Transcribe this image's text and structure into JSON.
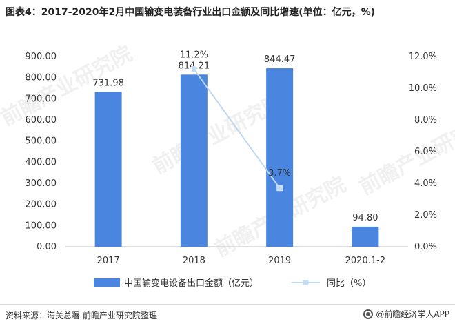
{
  "title": "图表4：2017-2020年2月中国输变电装备行业出口金额及同比增速(单位：亿元，%)",
  "source": "资料来源：海关总署 前瞻产业研究院整理",
  "brand": "@前瞻经济学人APP",
  "brand_icon": "qianzhan-logo-icon",
  "watermark": "前瞻产业研究院",
  "colors": {
    "bar": "#4a86e0",
    "line": "#bdd7ee",
    "marker": "#c6dcf2",
    "axis": "#bfbfbf",
    "text": "#333333"
  },
  "chart_data": {
    "type": "bar",
    "categories": [
      "2017",
      "2018",
      "2019",
      "2020.1-2"
    ],
    "series": [
      {
        "name": "中国输变电设备出口金额（亿元）",
        "type": "bar",
        "axis": "left",
        "values": [
          731.98,
          814.21,
          844.47,
          94.8
        ],
        "labels": [
          "731.98",
          "814.21",
          "844.47",
          "94.80"
        ]
      },
      {
        "name": "同比（%）",
        "type": "line",
        "axis": "right",
        "values": [
          null,
          11.2,
          3.7,
          null
        ],
        "labels": [
          "",
          "11.2%",
          "3.7%",
          ""
        ]
      }
    ],
    "ylim": [
      0,
      900
    ],
    "yticks": [
      "0.00",
      "100.00",
      "200.00",
      "300.00",
      "400.00",
      "500.00",
      "600.00",
      "700.00",
      "800.00",
      "900.00"
    ],
    "y2lim": [
      0,
      12
    ],
    "y2ticks": [
      "0.0%",
      "2.0%",
      "4.0%",
      "6.0%",
      "8.0%",
      "10.0%",
      "12.0%"
    ],
    "legend": "bottom",
    "grid": false
  }
}
